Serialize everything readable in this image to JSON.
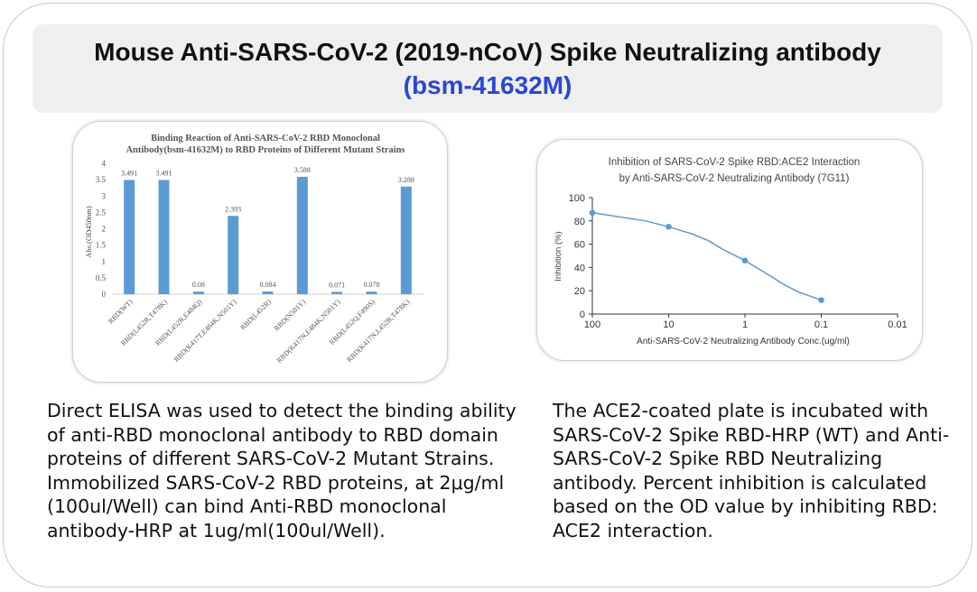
{
  "header": {
    "title": "Mouse Anti-SARS-CoV-2 (2019-nCoV) Spike Neutralizing antibody",
    "catalog": "(bsm-41632M)"
  },
  "chart_data": [
    {
      "type": "bar",
      "title": "Binding Reaction of Anti-SARS-CoV-2 RBD Monoclonal Antibody(bsm-41632M) to RBD Proteins of Different Mutant Strains",
      "title_lines": [
        "Binding Reaction of Anti-SARS-CoV-2 RBD Monoclonal",
        "Antibody(bsm-41632M) to RBD Proteins of Different Mutant Strains"
      ],
      "ylabel": "Abs.(OD450nm)",
      "xlabel": "",
      "ylim": [
        0,
        4
      ],
      "yticks": [
        "0",
        "0.5",
        "1",
        "1.5",
        "2",
        "2.5",
        "3",
        "3.5",
        "4"
      ],
      "categories": [
        "RBD(WT)",
        "RBD(L452R,T478K)",
        "RBD(L452R,E484Q)",
        "RBD(K417T,E484K,N501Y)",
        "RBD(L452R)",
        "RBD(N501Y)",
        "RBD(K417N,E484K,N501Y)",
        "RBD(L452Q,F490S)",
        "RBD(K417N,L452R,T478K)"
      ],
      "values": [
        3.491,
        3.491,
        0.08,
        2.393,
        0.084,
        3.588,
        0.071,
        0.078,
        3.288
      ],
      "value_labels": [
        "3.491",
        "3.491",
        "0.08",
        "2.393",
        "0.084",
        "3.588",
        "0.071",
        "0.078",
        "3.288"
      ],
      "color": "#5b9bd5",
      "grid": false,
      "legend": "none"
    },
    {
      "type": "line",
      "title": "Inhibition of SARS-CoV-2 Spike RBD:ACE2 Interaction by Anti-SARS-CoV-2 Neutralizing Antibody (7G11)",
      "title_lines": [
        "Inhibition of SARS-CoV-2 Spike RBD:ACE2 Interaction",
        "by Anti-SARS-CoV-2 Neutralizing Antibody (7G11)"
      ],
      "xlabel": "Anti-SARS-CoV-2 Neutralizing Antibody Conc.(ug/ml)",
      "ylabel": "Inhibition (%)",
      "xscale": "log",
      "xreversed": true,
      "xlim": [
        100,
        0.01
      ],
      "xticks": [
        "100",
        "10",
        "1",
        "0.1",
        "0.01"
      ],
      "ylim": [
        0,
        100
      ],
      "yticks": [
        "0",
        "20",
        "40",
        "60",
        "80",
        "100"
      ],
      "x": [
        100,
        10,
        1,
        0.1
      ],
      "y": [
        87,
        75,
        46,
        12
      ],
      "curve_x": [
        100,
        50,
        20,
        10,
        5,
        3,
        2,
        1,
        0.5,
        0.3,
        0.2,
        0.1
      ],
      "curve_y": [
        87,
        84,
        80,
        75,
        69,
        63,
        56,
        46,
        34,
        25,
        19,
        12
      ],
      "color": "#5b9bd5",
      "grid": false,
      "legend": "none"
    }
  ],
  "descriptions": {
    "left": "Direct ELISA was used to detect the binding ability of anti-RBD monoclonal antibody to RBD domain proteins of different SARS-CoV-2 Mutant Strains. Immobilized SARS-CoV-2 RBD proteins, at 2μg/ml (100ul/Well) can bind Anti-RBD monoclonal antibody-HRP at 1ug/ml(100ul/Well).",
    "right": "The ACE2-coated plate is incubated with SARS-CoV-2 Spike RBD-HRP (WT) and Anti-SARS-CoV-2 Spike RBD Neutralizing antibody. Percent inhibition is calculated based on the OD value by inhibiting RBD: ACE2 interaction."
  }
}
